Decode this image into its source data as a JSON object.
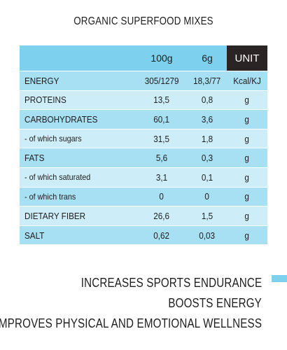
{
  "title": "ORGANIC SUPERFOOD MIXES",
  "table": {
    "header": {
      "col_100": "100g",
      "col_6": "6g",
      "col_unit": "UNIT"
    },
    "rows": [
      {
        "label": "ENERGY",
        "v100": "305/1279",
        "v6": "18,3/77",
        "unit": "Kcal/KJ",
        "sub": false
      },
      {
        "label": "PROTEINS",
        "v100": "13,5",
        "v6": "0,8",
        "unit": "g",
        "sub": false
      },
      {
        "label": "CARBOHYDRATES",
        "v100": "60,1",
        "v6": "3,6",
        "unit": "g",
        "sub": false
      },
      {
        "label": "- of which sugars",
        "v100": "31,5",
        "v6": "1,8",
        "unit": "g",
        "sub": true
      },
      {
        "label": "FATS",
        "v100": "5,6",
        "v6": "0,3",
        "unit": "g",
        "sub": false
      },
      {
        "label": "- of which saturated",
        "v100": "3,1",
        "v6": "0,1",
        "unit": "g",
        "sub": true
      },
      {
        "label": "- of which trans",
        "v100": "0",
        "v6": "0",
        "unit": "g",
        "sub": true
      },
      {
        "label": "DIETARY FIBER",
        "v100": "26,6",
        "v6": "1,5",
        "unit": "g",
        "sub": false
      },
      {
        "label": "SALT",
        "v100": "0,62",
        "v6": "0,03",
        "unit": "g",
        "sub": false
      }
    ]
  },
  "claims": [
    "INCREASES SPORTS ENDURANCE",
    "BOOSTS ENERGY",
    "IMPROVES PHYSICAL AND EMOTIONAL WELLNESS"
  ],
  "colors": {
    "header_blue": "#7dd0ee",
    "row_dark": "#a7dff3",
    "row_light": "#cdeef9",
    "unit_bg": "#2b2424"
  }
}
